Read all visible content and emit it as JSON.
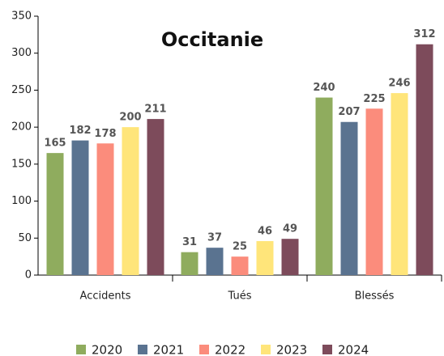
{
  "chart_data": {
    "type": "bar",
    "title": "Occitanie",
    "categories": [
      "Accidents",
      "Tués",
      "Blessés"
    ],
    "series": [
      {
        "name": "2020",
        "color": "#8fac5e",
        "values": [
          165,
          31,
          240
        ]
      },
      {
        "name": "2021",
        "color": "#5a7390",
        "values": [
          182,
          37,
          207
        ]
      },
      {
        "name": "2022",
        "color": "#fb8c7c",
        "values": [
          178,
          25,
          225
        ]
      },
      {
        "name": "2023",
        "color": "#ffe57a",
        "values": [
          200,
          46,
          246
        ]
      },
      {
        "name": "2024",
        "color": "#7d4b5b",
        "values": [
          211,
          49,
          312
        ]
      }
    ],
    "ylim": [
      0,
      350
    ],
    "yticks": [
      0,
      50,
      100,
      150,
      200,
      250,
      300,
      350
    ],
    "grid": false,
    "legend": "bottom"
  }
}
